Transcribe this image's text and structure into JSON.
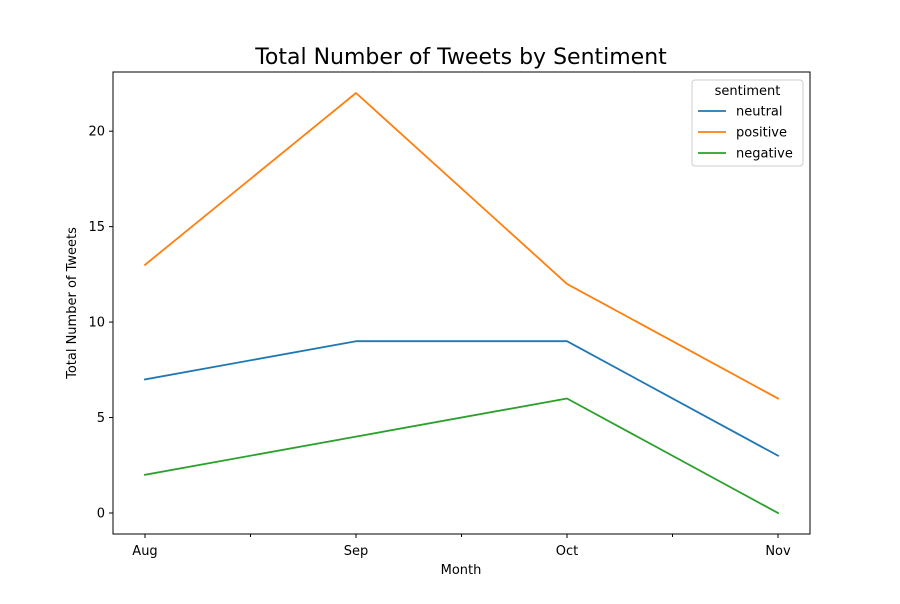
{
  "chart_data": {
    "type": "line",
    "title": "Total Number of Tweets by Sentiment",
    "xlabel": "Month",
    "ylabel": "Total Number of Tweets",
    "categories": [
      "Aug",
      "Sep",
      "Oct",
      "Nov"
    ],
    "ylim": [
      -1.1,
      23.1
    ],
    "yticks": [
      0,
      5,
      10,
      15,
      20
    ],
    "grid": false,
    "legend": {
      "title": "sentiment",
      "placement": "top-right"
    },
    "series": [
      {
        "name": "neutral",
        "color": "#1f77b4",
        "values": [
          7,
          9,
          9,
          3
        ]
      },
      {
        "name": "positive",
        "color": "#ff7f0e",
        "values": [
          13,
          22,
          12,
          6
        ]
      },
      {
        "name": "negative",
        "color": "#2ca02c",
        "values": [
          2,
          4,
          6,
          0
        ]
      }
    ]
  }
}
